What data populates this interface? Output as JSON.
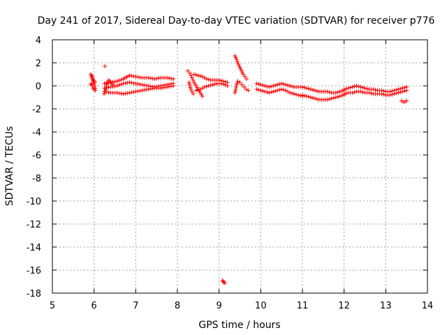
{
  "chart_data": {
    "type": "scatter",
    "title": "Day 241 of 2017, Sidereal Day-to-day VTEC variation (SDTVAR) for receiver p776",
    "xlabel": "GPS time / hours",
    "ylabel": "SDTVAR / TECUs",
    "xlim": [
      5,
      14
    ],
    "ylim": [
      -18,
      4
    ],
    "xticks": [
      5,
      6,
      7,
      8,
      9,
      10,
      11,
      12,
      13,
      14
    ],
    "yticks": [
      -18,
      -16,
      -14,
      -12,
      -10,
      -8,
      -6,
      -4,
      -2,
      0,
      2,
      4
    ],
    "grid": true,
    "marker": "+",
    "color": "#ff0000",
    "series": [
      {
        "name": "SDTVAR",
        "segments": [
          {
            "name": "arc-5.95-a",
            "x": [
              5.92,
              5.94,
              5.96,
              5.98,
              6.0,
              6.02
            ],
            "y": [
              1.0,
              0.8,
              0.6,
              0.5,
              0.4,
              0.3
            ]
          },
          {
            "name": "arc-5.95-b",
            "x": [
              5.92,
              5.94,
              5.96,
              5.98,
              6.0,
              6.03
            ],
            "y": [
              0.1,
              0.2,
              0.0,
              -0.2,
              -0.3,
              -0.4
            ]
          },
          {
            "name": "arc-5.95-c",
            "x": [
              5.95,
              5.97,
              5.99,
              6.01,
              6.03
            ],
            "y": [
              0.9,
              0.6,
              0.3,
              0.0,
              -0.2
            ]
          },
          {
            "name": "outlier-6.25",
            "x": [
              6.26
            ],
            "y": [
              1.7
            ]
          },
          {
            "name": "arc-6.25-6.45",
            "x": [
              6.24,
              6.26,
              6.28,
              6.3,
              6.32,
              6.35,
              6.38,
              6.42,
              6.46
            ],
            "y": [
              -0.7,
              -0.5,
              -0.2,
              0.0,
              0.3,
              0.5,
              0.4,
              0.2,
              0.1
            ]
          },
          {
            "name": "band-upper",
            "x": [
              6.25,
              6.4,
              6.55,
              6.7,
              6.85,
              7.0,
              7.15,
              7.3,
              7.45,
              7.6,
              7.75,
              7.9
            ],
            "y": [
              0.2,
              0.3,
              0.4,
              0.6,
              0.9,
              0.8,
              0.7,
              0.7,
              0.6,
              0.7,
              0.7,
              0.6
            ]
          },
          {
            "name": "band-middle",
            "x": [
              6.25,
              6.4,
              6.55,
              6.7,
              6.85,
              7.0,
              7.15,
              7.3,
              7.45,
              7.6,
              7.75,
              7.9
            ],
            "y": [
              -0.2,
              -0.1,
              0.0,
              0.2,
              0.3,
              0.2,
              0.1,
              0.0,
              -0.1,
              0.0,
              0.1,
              0.2
            ]
          },
          {
            "name": "band-lower",
            "x": [
              6.25,
              6.4,
              6.55,
              6.7,
              6.85,
              7.0,
              7.15,
              7.3,
              7.45,
              7.6,
              7.75,
              7.9
            ],
            "y": [
              -0.5,
              -0.6,
              -0.6,
              -0.7,
              -0.6,
              -0.5,
              -0.4,
              -0.3,
              -0.2,
              -0.2,
              -0.1,
              0.0
            ]
          },
          {
            "name": "arc-8.3-8.6",
            "x": [
              8.25,
              8.3,
              8.35,
              8.4,
              8.45,
              8.5,
              8.55,
              8.6
            ],
            "y": [
              1.3,
              1.1,
              0.7,
              0.3,
              0.0,
              -0.3,
              -0.6,
              -0.9
            ]
          },
          {
            "name": "arc-8.3-8.2",
            "x": [
              8.28,
              8.3,
              8.32,
              8.35,
              8.38
            ],
            "y": [
              0.3,
              0.0,
              -0.3,
              -0.5,
              -0.7
            ]
          },
          {
            "name": "band-8.6-9.2-upper",
            "x": [
              8.4,
              8.5,
              8.6,
              8.7,
              8.8,
              8.9,
              9.0,
              9.1,
              9.2
            ],
            "y": [
              1.0,
              0.9,
              0.8,
              0.6,
              0.5,
              0.5,
              0.5,
              0.4,
              0.3
            ]
          },
          {
            "name": "band-8.6-9.2-lower",
            "x": [
              8.45,
              8.55,
              8.65,
              8.75,
              8.85,
              8.95,
              9.05,
              9.15,
              9.2
            ],
            "y": [
              -0.4,
              -0.3,
              -0.1,
              0.0,
              0.1,
              0.2,
              0.2,
              0.1,
              0.0
            ]
          },
          {
            "name": "outlier-9.1",
            "x": [
              9.08,
              9.1,
              9.12,
              9.14
            ],
            "y": [
              -16.9,
              -17.0,
              -17.1,
              -17.1
            ]
          },
          {
            "name": "steep-9.4-9.7",
            "x": [
              9.38,
              9.42,
              9.46,
              9.5,
              9.54,
              9.58,
              9.62,
              9.66
            ],
            "y": [
              2.6,
              2.3,
              1.9,
              1.6,
              1.3,
              1.0,
              0.8,
              0.6
            ]
          },
          {
            "name": "arc-9.4-9.7",
            "x": [
              9.38,
              9.4,
              9.42,
              9.45,
              9.5,
              9.55,
              9.6,
              9.65,
              9.7
            ],
            "y": [
              -0.6,
              -0.3,
              0.1,
              0.4,
              0.3,
              0.1,
              -0.1,
              -0.3,
              -0.4
            ]
          },
          {
            "name": "band-9.9-11.0-upper",
            "x": [
              9.9,
              10.0,
              10.1,
              10.2,
              10.3,
              10.4,
              10.5,
              10.6,
              10.7,
              10.8,
              10.9,
              11.0
            ],
            "y": [
              0.2,
              0.1,
              0.0,
              -0.1,
              0.0,
              0.1,
              0.2,
              0.1,
              0.0,
              -0.1,
              -0.1,
              -0.1
            ]
          },
          {
            "name": "band-9.9-11.0-lower",
            "x": [
              9.9,
              10.0,
              10.1,
              10.2,
              10.3,
              10.4,
              10.5,
              10.6,
              10.7,
              10.8,
              10.9,
              11.0
            ],
            "y": [
              -0.3,
              -0.4,
              -0.5,
              -0.6,
              -0.5,
              -0.4,
              -0.3,
              -0.4,
              -0.6,
              -0.7,
              -0.8,
              -0.9
            ]
          },
          {
            "name": "band-11.0-12.0-upper",
            "x": [
              11.0,
              11.1,
              11.2,
              11.3,
              11.4,
              11.5,
              11.6,
              11.7,
              11.8,
              11.9,
              12.0
            ],
            "y": [
              -0.1,
              -0.2,
              -0.3,
              -0.4,
              -0.5,
              -0.5,
              -0.5,
              -0.6,
              -0.6,
              -0.5,
              -0.4
            ]
          },
          {
            "name": "band-11.0-12.0-lower",
            "x": [
              11.0,
              11.1,
              11.2,
              11.3,
              11.4,
              11.5,
              11.6,
              11.7,
              11.8,
              11.9,
              12.0
            ],
            "y": [
              -0.8,
              -0.9,
              -1.0,
              -1.1,
              -1.2,
              -1.2,
              -1.2,
              -1.1,
              -1.0,
              -0.9,
              -0.8
            ]
          },
          {
            "name": "band-12.0-13.5-upper",
            "x": [
              12.0,
              12.1,
              12.2,
              12.3,
              12.4,
              12.5,
              12.6,
              12.7,
              12.8,
              12.9,
              13.0,
              13.1,
              13.2,
              13.3,
              13.4,
              13.5
            ],
            "y": [
              -0.3,
              -0.2,
              -0.1,
              0.0,
              -0.1,
              -0.2,
              -0.3,
              -0.3,
              -0.4,
              -0.4,
              -0.5,
              -0.5,
              -0.4,
              -0.3,
              -0.2,
              -0.1
            ]
          },
          {
            "name": "band-12.0-13.5-lower",
            "x": [
              12.0,
              12.1,
              12.2,
              12.3,
              12.4,
              12.5,
              12.6,
              12.7,
              12.8,
              12.9,
              13.0,
              13.1,
              13.2,
              13.3,
              13.4,
              13.5
            ],
            "y": [
              -0.7,
              -0.6,
              -0.6,
              -0.5,
              -0.5,
              -0.6,
              -0.6,
              -0.7,
              -0.7,
              -0.7,
              -0.8,
              -0.8,
              -0.7,
              -0.6,
              -0.5,
              -0.4
            ]
          },
          {
            "name": "tail-13.45",
            "x": [
              13.38,
              13.42,
              13.46,
              13.5
            ],
            "y": [
              -1.3,
              -1.4,
              -1.4,
              -1.3
            ]
          }
        ]
      }
    ]
  }
}
